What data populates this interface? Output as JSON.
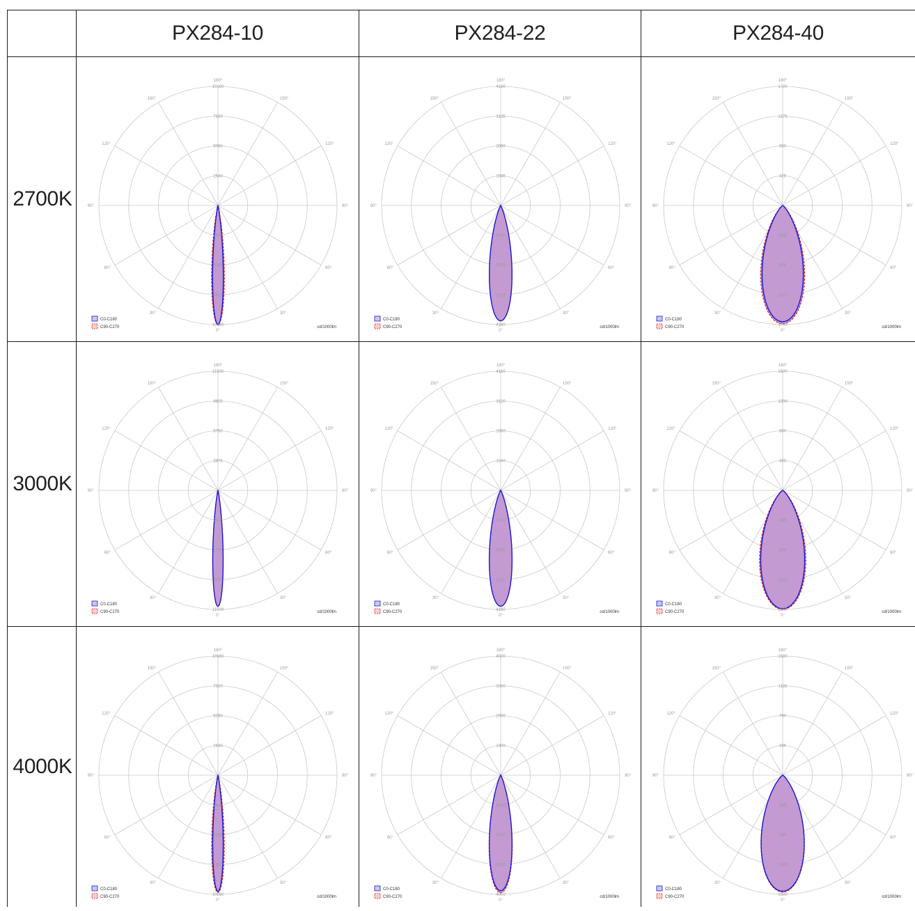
{
  "table": {
    "columns": [
      "PX284-10",
      "PX284-22",
      "PX284-40"
    ],
    "rows": [
      "2700K",
      "3000K",
      "4000K"
    ]
  },
  "polar": {
    "angle_labels_left": [
      "150°",
      "120°",
      "90°",
      "60°",
      "30°"
    ],
    "angle_labels_right": [
      "150°",
      "120°",
      "90°",
      "60°",
      "30°"
    ],
    "top_label": "180°",
    "bottom_label": "0°",
    "unit": "cd/1000lm",
    "legend": [
      "C0-C180",
      "C90-C270"
    ],
    "colors": {
      "c0": "#1a1adb",
      "c90": "#e0201a",
      "fill": "#c39ad1",
      "grid": "#c8c8c8"
    }
  },
  "chart_data": [
    {
      "type": "polar",
      "title": "PX284-10 2700K",
      "ring_labels": [
        "2540",
        "5080",
        "7620",
        "10160"
      ],
      "max": 10160,
      "series": [
        {
          "name": "C0-C180",
          "beam_half_angle_deg": 5,
          "peak": 10160
        },
        {
          "name": "C90-C270",
          "beam_half_angle_deg": 6,
          "peak": 10160
        }
      ]
    },
    {
      "type": "polar",
      "title": "PX284-22 2700K",
      "ring_labels": [
        "1045",
        "2090",
        "3135",
        "4180"
      ],
      "max": 4180,
      "series": [
        {
          "name": "C0-C180",
          "beam_half_angle_deg": 11,
          "peak": 4050
        },
        {
          "name": "C90-C270",
          "beam_half_angle_deg": 11,
          "peak": 4050
        }
      ]
    },
    {
      "type": "polar",
      "title": "PX284-40 2700K",
      "ring_labels": [
        "425",
        "850",
        "1275",
        "1700"
      ],
      "max": 1700,
      "series": [
        {
          "name": "C0-C180",
          "beam_half_angle_deg": 20,
          "peak": 1660
        },
        {
          "name": "C90-C270",
          "beam_half_angle_deg": 21,
          "peak": 1690
        }
      ]
    },
    {
      "type": "polar",
      "title": "PX284-10 3000K",
      "ring_labels": [
        "2875",
        "5750",
        "8625",
        "11500"
      ],
      "max": 11500,
      "series": [
        {
          "name": "C0-C180",
          "beam_half_angle_deg": 5,
          "peak": 11200
        },
        {
          "name": "C90-C270",
          "beam_half_angle_deg": 5,
          "peak": 11200
        }
      ]
    },
    {
      "type": "polar",
      "title": "PX284-22 3000K",
      "ring_labels": [
        "1040",
        "2080",
        "3120",
        "4160"
      ],
      "max": 4160,
      "series": [
        {
          "name": "C0-C180",
          "beam_half_angle_deg": 11,
          "peak": 4050
        },
        {
          "name": "C90-C270",
          "beam_half_angle_deg": 11,
          "peak": 4050
        }
      ]
    },
    {
      "type": "polar",
      "title": "PX284-40 3000K",
      "ring_labels": [
        "400",
        "800",
        "1200",
        "1600"
      ],
      "max": 1600,
      "series": [
        {
          "name": "C0-C180",
          "beam_half_angle_deg": 21,
          "peak": 1590
        },
        {
          "name": "C90-C270",
          "beam_half_angle_deg": 22,
          "peak": 1600
        }
      ]
    },
    {
      "type": "polar",
      "title": "PX284-10 4000K",
      "ring_labels": [
        "2640",
        "5280",
        "7920",
        "10560"
      ],
      "max": 10560,
      "series": [
        {
          "name": "C0-C180",
          "beam_half_angle_deg": 5,
          "peak": 10300
        },
        {
          "name": "C90-C270",
          "beam_half_angle_deg": 6,
          "peak": 10400
        }
      ]
    },
    {
      "type": "polar",
      "title": "PX284-22 4000K",
      "ring_labels": [
        "1000",
        "2000",
        "3000",
        "4000"
      ],
      "max": 4000,
      "series": [
        {
          "name": "C0-C180",
          "beam_half_angle_deg": 11,
          "peak": 3880
        },
        {
          "name": "C90-C270",
          "beam_half_angle_deg": 11,
          "peak": 3950
        }
      ]
    },
    {
      "type": "polar",
      "title": "PX284-40 4000K",
      "ring_labels": [
        "395",
        "790",
        "1185",
        "1580"
      ],
      "max": 1580,
      "series": [
        {
          "name": "C0-C180",
          "beam_half_angle_deg": 21,
          "peak": 1540
        },
        {
          "name": "C90-C270",
          "beam_half_angle_deg": 21,
          "peak": 1550
        }
      ]
    }
  ]
}
